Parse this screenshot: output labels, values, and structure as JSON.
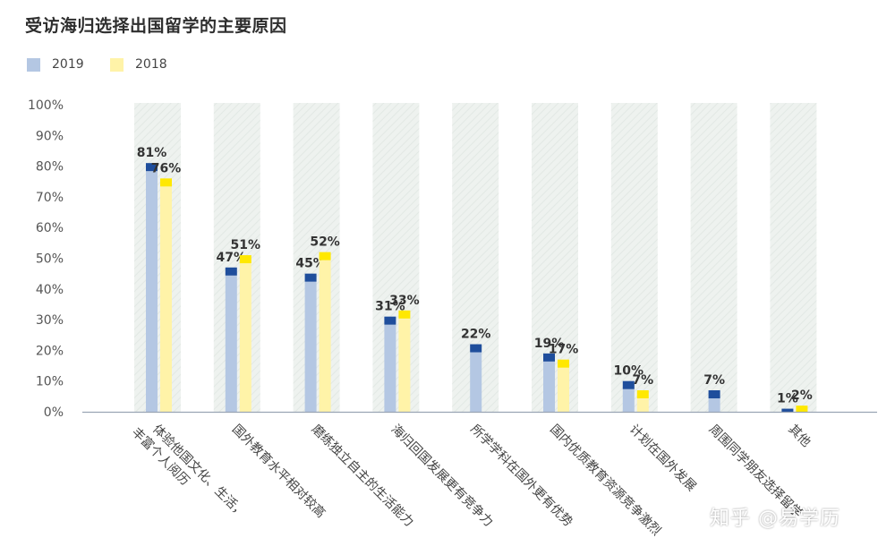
{
  "title": "受访海归选择出国留学的主要原因",
  "legend": [
    {
      "label": "2019",
      "color": "#b4c7e3"
    },
    {
      "label": "2018",
      "color": "#fff3a8"
    }
  ],
  "watermark": "知乎 @易学历",
  "colors": {
    "bar2019": "#b4c7e3",
    "cap2019": "#1f4e9c",
    "bar2018": "#fff3a8",
    "cap2018": "#ffe800",
    "backdrop": "#eef2ef"
  },
  "chart_data": {
    "type": "bar",
    "categories": [
      [
        "体验他国文化、生活，",
        "丰富个人阅历"
      ],
      [
        "国外教育水平相对较高"
      ],
      [
        "磨练独立自主的生活能力"
      ],
      [
        "海归回国发展更有竞争力"
      ],
      [
        "所学学科在国外更有优势"
      ],
      [
        "国内优质教育资源竞争激烈"
      ],
      [
        "计划在国外发展"
      ],
      [
        "周围同学朋友选择留学"
      ],
      [
        "其他"
      ]
    ],
    "series": [
      {
        "name": "2019",
        "values": [
          81,
          47,
          45,
          31,
          22,
          19,
          10,
          7,
          1
        ],
        "labels": [
          "81%",
          "47%",
          "45%",
          "31%",
          "22%",
          "19%",
          "10%",
          "7%",
          "1%"
        ]
      },
      {
        "name": "2018",
        "values": [
          76,
          51,
          52,
          33,
          null,
          17,
          7,
          null,
          2
        ],
        "labels": [
          "76%",
          "51%",
          "52%",
          "33%",
          "",
          "17%",
          "7%",
          "",
          "2%"
        ]
      }
    ],
    "ylim": [
      0,
      100
    ],
    "yticks": [
      "0%",
      "10%",
      "20%",
      "30%",
      "40%",
      "50%",
      "60%",
      "70%",
      "80%",
      "90%",
      "100%"
    ],
    "legend_position": "top-left",
    "grid": false
  }
}
